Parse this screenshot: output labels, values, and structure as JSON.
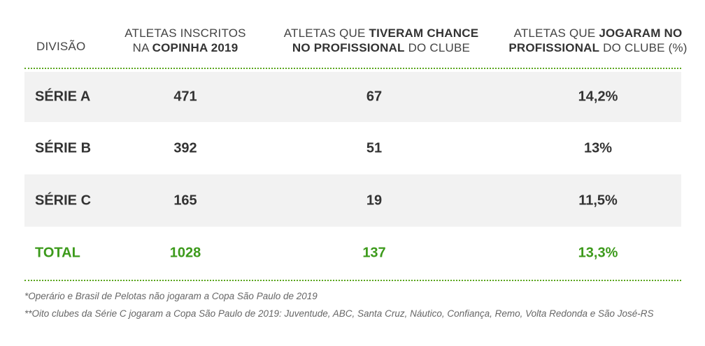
{
  "header": {
    "col_division": "DIVISÃO",
    "col1": {
      "line1_plain": "ATLETAS INSCRITOS",
      "line2_plain": "NA ",
      "line2_bold": "COPINHA 2019"
    },
    "col2": {
      "line1_plain": "ATLETAS QUE ",
      "line1_bold": "TIVERAM CHANCE",
      "line2_bold": "NO PROFISSIONAL",
      "line2_plain": " DO CLUBE"
    },
    "col3": {
      "line1_plain": "ATLETAS QUE ",
      "line1_bold": "JOGARAM NO",
      "line2_bold": "PROFISSIONAL",
      "line2_plain": " DO CLUBE (%)"
    }
  },
  "rows": [
    {
      "division": "SÉRIE A",
      "inscritos": "471",
      "chance": "67",
      "jogaram": "14,2%"
    },
    {
      "division": "SÉRIE B",
      "inscritos": "392",
      "chance": "51",
      "jogaram": "13%"
    },
    {
      "division": "SÉRIE C",
      "inscritos": "165",
      "chance": "19",
      "jogaram": "11,5%"
    }
  ],
  "total": {
    "division": "TOTAL",
    "inscritos": "1028",
    "chance": "137",
    "jogaram": "13,3%"
  },
  "notes": [
    "*Operário e Brasil de Pelotas não jogaram a Copa São Paulo de 2019",
    "**Oito clubes da Série C jogaram a Copa São Paulo de 2019: Juventude, ABC, Santa Cruz, Náutico, Confiança, Remo, Volta Redonda e São José-RS"
  ],
  "colors": {
    "accent_green": "#3c9a1b",
    "row_shade": "#f2f2f2",
    "text_dark": "#333333"
  }
}
